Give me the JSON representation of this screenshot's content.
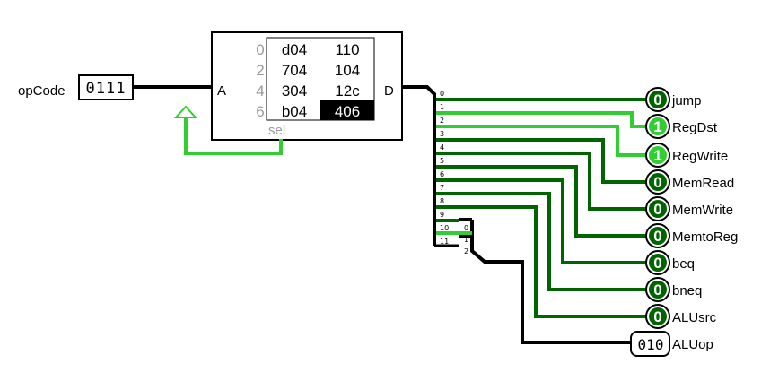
{
  "colors": {
    "wire_dark": "#006400",
    "wire_bright": "#32cd32",
    "bus": "#000000",
    "highlight_bg": "#000000"
  },
  "input": {
    "label": "opCode",
    "value": "0111"
  },
  "rom": {
    "port_a": "A",
    "port_d": "D",
    "sel_label": "sel",
    "rows": [
      {
        "addr": "0",
        "c1": "d04",
        "c2": "110"
      },
      {
        "addr": "2",
        "c1": "704",
        "c2": "104"
      },
      {
        "addr": "4",
        "c1": "304",
        "c2": "12c"
      },
      {
        "addr": "6",
        "c1": "b04",
        "c2": "406"
      }
    ],
    "highlighted": "406"
  },
  "splitter_main": [
    "0",
    "1",
    "2",
    "3",
    "4",
    "5",
    "6",
    "7",
    "8",
    "9",
    "10",
    "11"
  ],
  "splitter_sub": [
    "0",
    "1",
    "2"
  ],
  "outputs": [
    {
      "name": "jump",
      "value": "0",
      "active": false
    },
    {
      "name": "RegDst",
      "value": "1",
      "active": true
    },
    {
      "name": "RegWrite",
      "value": "1",
      "active": true
    },
    {
      "name": "MemRead",
      "value": "0",
      "active": false
    },
    {
      "name": "MemWrite",
      "value": "0",
      "active": false
    },
    {
      "name": "MemtoReg",
      "value": "0",
      "active": false
    },
    {
      "name": "beq",
      "value": "0",
      "active": false
    },
    {
      "name": "bneq",
      "value": "0",
      "active": false
    },
    {
      "name": "ALUsrc",
      "value": "0",
      "active": false
    }
  ],
  "aluop": {
    "name": "ALUop",
    "value": "010"
  }
}
